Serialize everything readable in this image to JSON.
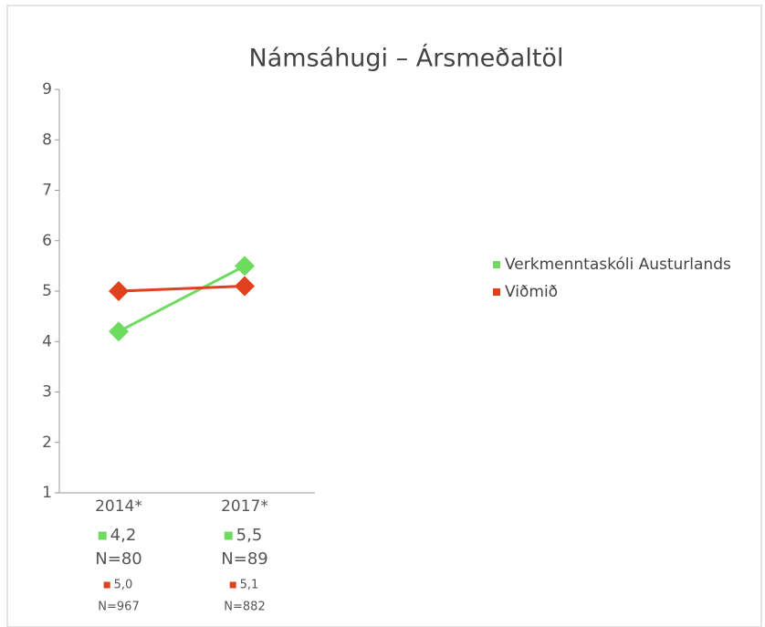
{
  "chart_data": {
    "type": "line",
    "title": "Námsáhugi – Ársmeðaltöl",
    "categories": [
      "2014*",
      "2017*"
    ],
    "series": [
      {
        "name": "Verkmenntaskóli Austurlands",
        "color": "#6ddc5e",
        "values": [
          4.2,
          5.5
        ],
        "value_labels": [
          "4,2",
          "5,5"
        ],
        "n_labels": [
          "N=80",
          "N=89"
        ]
      },
      {
        "name": "Viðmið",
        "color": "#e0401c",
        "values": [
          5.0,
          5.1
        ],
        "value_labels": [
          "5,0",
          "5,1"
        ],
        "n_labels": [
          "N=967",
          "N=882"
        ]
      }
    ],
    "ylim": [
      1,
      9
    ],
    "yticks": [
      1,
      2,
      3,
      4,
      5,
      6,
      7,
      8,
      9
    ],
    "legend": "right"
  }
}
